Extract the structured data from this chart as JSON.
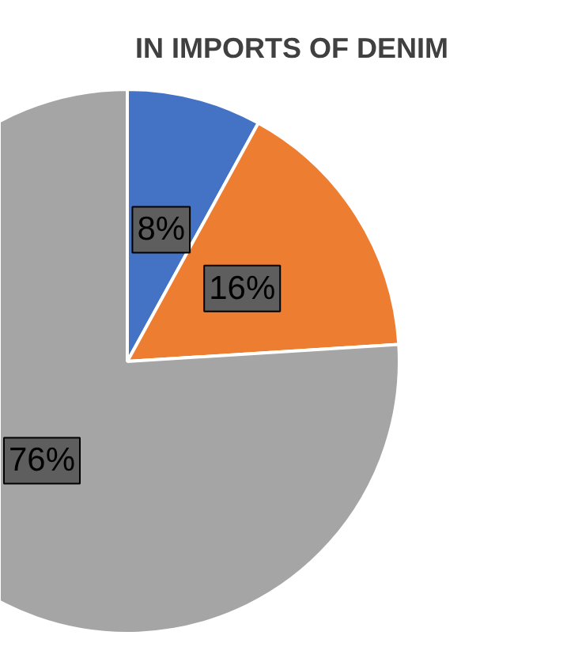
{
  "chart_data": {
    "type": "pie",
    "title": "IN IMPORTS OF DENIM",
    "categories": [
      null,
      null,
      null
    ],
    "values": [
      8,
      16,
      76
    ],
    "colors": [
      "#4472c4",
      "#ed7d31",
      "#a5a5a5"
    ],
    "value_labels": [
      "8%",
      "16%",
      "76%"
    ]
  }
}
